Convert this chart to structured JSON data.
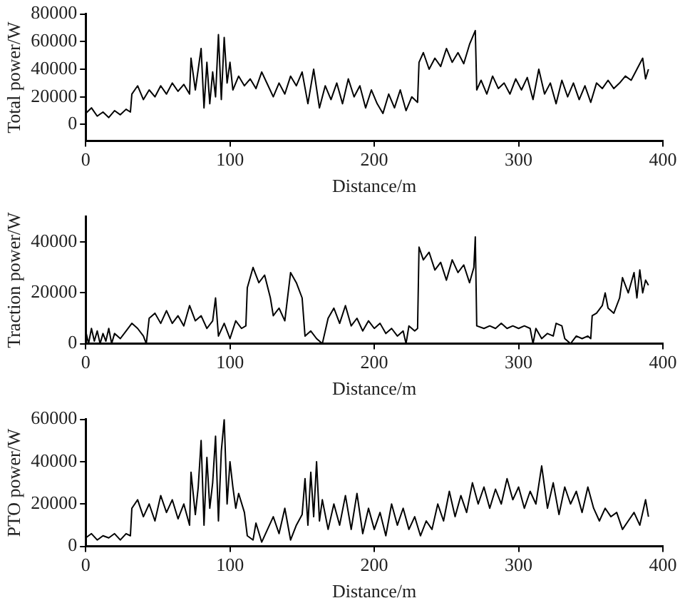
{
  "chart_data": [
    {
      "type": "line",
      "xlabel": "Distance/m",
      "ylabel": "Total power/W",
      "xlim": [
        0,
        400
      ],
      "xticks": [
        0,
        100,
        200,
        300,
        400
      ],
      "ylim": [
        -12000,
        80000
      ],
      "yticks": [
        0,
        20000,
        40000,
        60000,
        80000
      ],
      "grid": false,
      "marker": "none",
      "series": [
        {
          "color": "#000000",
          "x": [
            0,
            4,
            8,
            12,
            16,
            20,
            24,
            28,
            31,
            32,
            36,
            40,
            44,
            48,
            52,
            56,
            60,
            64,
            68,
            72,
            73,
            76,
            80,
            82,
            84,
            86,
            88,
            90,
            92,
            94,
            96,
            98,
            100,
            102,
            106,
            110,
            114,
            118,
            122,
            126,
            130,
            134,
            138,
            142,
            146,
            150,
            154,
            158,
            162,
            166,
            170,
            174,
            178,
            182,
            186,
            190,
            194,
            198,
            202,
            206,
            210,
            214,
            218,
            222,
            226,
            230,
            231,
            234,
            238,
            242,
            246,
            250,
            254,
            258,
            262,
            266,
            270,
            271,
            274,
            278,
            282,
            286,
            290,
            294,
            298,
            302,
            306,
            310,
            314,
            318,
            322,
            326,
            330,
            334,
            338,
            342,
            346,
            350,
            354,
            358,
            362,
            366,
            370,
            374,
            378,
            382,
            386,
            388,
            390
          ],
          "values": [
            8000,
            12000,
            6000,
            9000,
            5000,
            10000,
            7000,
            11000,
            9000,
            22000,
            28000,
            18000,
            25000,
            20000,
            28000,
            22000,
            30000,
            24000,
            29000,
            22000,
            48000,
            25000,
            55000,
            12000,
            45000,
            15000,
            38000,
            20000,
            65000,
            18000,
            63000,
            30000,
            45000,
            25000,
            35000,
            28000,
            33000,
            26000,
            38000,
            29000,
            20000,
            30000,
            22000,
            35000,
            28000,
            38000,
            15000,
            40000,
            12000,
            28000,
            18000,
            30000,
            15000,
            33000,
            20000,
            28000,
            12000,
            25000,
            15000,
            8000,
            22000,
            12000,
            25000,
            10000,
            20000,
            16000,
            45000,
            52000,
            40000,
            48000,
            42000,
            55000,
            45000,
            52000,
            44000,
            58000,
            68000,
            25000,
            32000,
            22000,
            35000,
            26000,
            30000,
            22000,
            33000,
            25000,
            34000,
            18000,
            40000,
            22000,
            30000,
            15000,
            32000,
            20000,
            30000,
            18000,
            28000,
            16000,
            30000,
            26000,
            32000,
            26000,
            30000,
            35000,
            32000,
            40000,
            48000,
            33000,
            40000
          ]
        }
      ]
    },
    {
      "type": "line",
      "xlabel": "Distance/m",
      "ylabel": "Traction power/W",
      "xlim": [
        0,
        400
      ],
      "xticks": [
        0,
        100,
        200,
        300,
        400
      ],
      "ylim": [
        0,
        50000
      ],
      "yticks": [
        0,
        20000,
        40000
      ],
      "grid": false,
      "marker": "none",
      "series": [
        {
          "color": "#000000",
          "x": [
            0,
            2,
            4,
            6,
            8,
            10,
            12,
            14,
            16,
            18,
            20,
            24,
            28,
            32,
            36,
            40,
            42,
            44,
            48,
            52,
            56,
            60,
            64,
            68,
            72,
            76,
            80,
            84,
            88,
            90,
            92,
            96,
            100,
            104,
            108,
            111,
            112,
            116,
            120,
            124,
            128,
            130,
            134,
            138,
            142,
            146,
            150,
            152,
            156,
            160,
            164,
            168,
            172,
            176,
            180,
            184,
            188,
            192,
            196,
            200,
            204,
            208,
            212,
            216,
            220,
            222,
            224,
            228,
            230,
            231,
            234,
            238,
            242,
            246,
            250,
            254,
            258,
            262,
            266,
            269,
            270,
            271,
            276,
            280,
            284,
            288,
            292,
            296,
            300,
            304,
            308,
            310,
            312,
            316,
            320,
            324,
            326,
            330,
            332,
            336,
            340,
            344,
            348,
            350,
            351,
            354,
            358,
            360,
            362,
            366,
            370,
            372,
            376,
            380,
            382,
            384,
            386,
            388,
            390
          ],
          "values": [
            5000,
            0,
            6000,
            1000,
            5000,
            0,
            4000,
            1000,
            6000,
            0,
            4000,
            2000,
            5000,
            8000,
            6000,
            3000,
            0,
            10000,
            12000,
            8000,
            13000,
            8000,
            11000,
            7000,
            15000,
            9000,
            11000,
            6000,
            9000,
            18000,
            3000,
            8000,
            2000,
            9000,
            6000,
            7000,
            22000,
            30000,
            24000,
            27000,
            18000,
            11000,
            14000,
            9000,
            28000,
            24000,
            18000,
            3000,
            5000,
            2000,
            0,
            10000,
            14000,
            8000,
            15000,
            7000,
            10000,
            5000,
            9000,
            6000,
            8000,
            4000,
            6000,
            3000,
            5000,
            0,
            7000,
            5000,
            6000,
            38000,
            33000,
            36000,
            29000,
            32000,
            25000,
            33000,
            28000,
            31000,
            24000,
            30000,
            42000,
            7000,
            6000,
            7000,
            6000,
            8000,
            6000,
            7000,
            6000,
            7000,
            6000,
            0,
            6000,
            2000,
            4000,
            3000,
            8000,
            7000,
            2000,
            0,
            3000,
            2000,
            3000,
            2000,
            11000,
            12000,
            15000,
            20000,
            14000,
            12000,
            18000,
            26000,
            20000,
            28000,
            18000,
            29000,
            20000,
            25000,
            23000
          ]
        }
      ]
    },
    {
      "type": "line",
      "xlabel": "Distance/m",
      "ylabel": "PTO power/W",
      "xlim": [
        0,
        400
      ],
      "xticks": [
        0,
        100,
        200,
        300,
        400
      ],
      "ylim": [
        0,
        60000
      ],
      "yticks": [
        0,
        20000,
        40000,
        60000
      ],
      "grid": false,
      "marker": "none",
      "series": [
        {
          "color": "#000000",
          "x": [
            0,
            4,
            8,
            12,
            16,
            20,
            24,
            28,
            31,
            32,
            36,
            40,
            44,
            48,
            52,
            56,
            60,
            64,
            68,
            72,
            73,
            76,
            78,
            80,
            82,
            84,
            86,
            88,
            90,
            92,
            94,
            96,
            98,
            100,
            102,
            104,
            106,
            110,
            112,
            116,
            118,
            122,
            126,
            130,
            134,
            138,
            142,
            146,
            150,
            152,
            154,
            156,
            158,
            160,
            162,
            164,
            168,
            172,
            176,
            180,
            184,
            188,
            192,
            196,
            200,
            204,
            208,
            212,
            216,
            220,
            224,
            228,
            232,
            236,
            240,
            244,
            248,
            252,
            256,
            260,
            264,
            268,
            272,
            276,
            280,
            284,
            288,
            292,
            296,
            300,
            304,
            308,
            312,
            316,
            320,
            324,
            328,
            332,
            336,
            340,
            344,
            348,
            352,
            356,
            360,
            364,
            368,
            372,
            376,
            380,
            384,
            388,
            390
          ],
          "values": [
            4000,
            6000,
            3000,
            5000,
            4000,
            6000,
            3000,
            6000,
            5000,
            18000,
            22000,
            14000,
            20000,
            12000,
            24000,
            16000,
            22000,
            13000,
            20000,
            10000,
            35000,
            15000,
            28000,
            50000,
            10000,
            42000,
            18000,
            30000,
            52000,
            12000,
            45000,
            60000,
            20000,
            40000,
            28000,
            18000,
            25000,
            16000,
            5000,
            3000,
            11000,
            2000,
            8000,
            14000,
            6000,
            18000,
            3000,
            10000,
            15000,
            32000,
            10000,
            35000,
            14000,
            40000,
            12000,
            22000,
            8000,
            20000,
            10000,
            24000,
            8000,
            25000,
            6000,
            18000,
            8000,
            16000,
            5000,
            20000,
            10000,
            18000,
            8000,
            14000,
            5000,
            12000,
            8000,
            20000,
            12000,
            26000,
            14000,
            24000,
            16000,
            30000,
            20000,
            28000,
            18000,
            27000,
            20000,
            32000,
            22000,
            28000,
            18000,
            26000,
            20000,
            38000,
            18000,
            30000,
            15000,
            28000,
            20000,
            26000,
            16000,
            28000,
            18000,
            12000,
            18000,
            14000,
            16000,
            8000,
            12000,
            16000,
            10000,
            22000,
            14000
          ]
        }
      ]
    }
  ]
}
